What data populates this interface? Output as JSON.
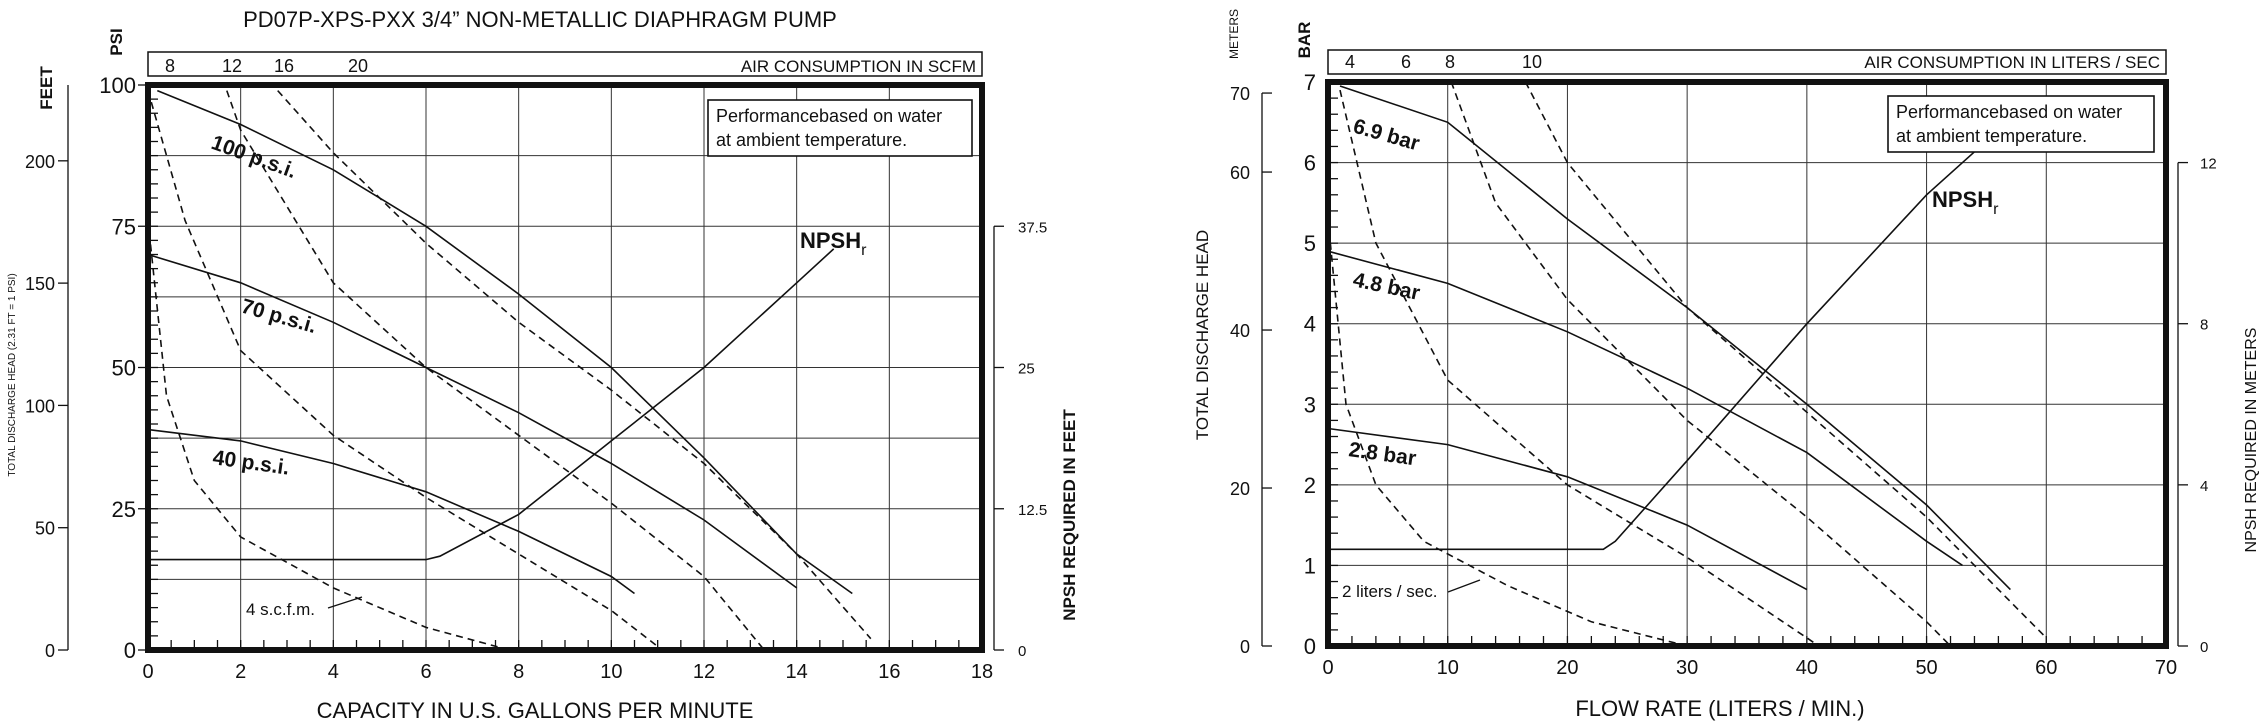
{
  "chart_data": [
    {
      "type": "line",
      "title": "PD07P-XPS-PXX 3/4” NON-METALLIC DIAPHRAGM PUMP",
      "xlabel": "CAPACITY IN U.S. GALLONS PER MINUTE",
      "xlim": [
        0,
        18
      ],
      "x_ticks": [
        "0",
        "2",
        "4",
        "6",
        "8",
        "10",
        "12",
        "14",
        "16",
        "18"
      ],
      "ylabel_left_units": "PSI",
      "ylim_psi": [
        0,
        100
      ],
      "y_ticks_psi": [
        "0",
        "25",
        "50",
        "75",
        "100"
      ],
      "ylabel_far_left": "FEET",
      "ylabel_far_left_desc": "TOTAL DISCHARGE HEAD (2.31 FT = 1 PSI)",
      "y_ticks_feet": [
        "0",
        "50",
        "100",
        "150",
        "200"
      ],
      "ylabel_right": "NPSH REQUIRED IN FEET",
      "y_ticks_right": [
        "0",
        "12.5",
        "25",
        "37.5"
      ],
      "top_axis_label": "AIR CONSUMPTION IN SCFM",
      "top_ticks": [
        "8",
        "12",
        "16",
        "20"
      ],
      "note_line1": "Performancebased on water",
      "note_line2": "at ambient temperature.",
      "npsh_label": "NPSH",
      "npsh_sub": "r",
      "air_label": "4 s.c.f.m.",
      "series": [
        {
          "name": "100 p.s.i.",
          "x": [
            0.2,
            2,
            4,
            6,
            8,
            10,
            12,
            14,
            15.2
          ],
          "y": [
            99,
            93,
            85,
            75,
            63,
            50,
            34,
            17,
            10
          ]
        },
        {
          "name": "70 p.s.i.",
          "x": [
            0,
            2,
            4,
            6,
            8,
            10,
            12,
            14
          ],
          "y": [
            70,
            65,
            58,
            50,
            42,
            33,
            23,
            11
          ]
        },
        {
          "name": "40 p.s.i.",
          "x": [
            0,
            2,
            4,
            6,
            8,
            10,
            10.5
          ],
          "y": [
            39,
            37,
            33,
            28,
            21,
            13,
            10
          ]
        },
        {
          "name": "NPSH",
          "axis": "npsh_feet",
          "x": [
            0,
            6,
            6.3,
            8,
            10,
            12,
            14,
            14.8
          ],
          "y_npsh_ft": [
            8,
            8,
            8.3,
            12,
            18.5,
            25,
            32.5,
            35.5
          ]
        }
      ],
      "air_lines_scfm": [
        {
          "x": [
            0,
            0.4,
            1,
            2,
            4,
            6,
            7.8
          ],
          "y": [
            76,
            45,
            30,
            20,
            11,
            4,
            0
          ]
        },
        {
          "x": [
            0,
            0.8,
            2,
            4,
            6,
            8,
            10,
            11.1
          ],
          "y": [
            99,
            76,
            53,
            38,
            27,
            17,
            7,
            0
          ]
        },
        {
          "x": [
            1.7,
            2,
            4,
            6,
            8,
            10,
            12,
            13.3
          ],
          "y": [
            99,
            92,
            65,
            50,
            38,
            26,
            13,
            0
          ]
        },
        {
          "x": [
            2.8,
            4,
            6,
            8,
            10,
            12,
            14,
            15.6
          ],
          "y": [
            99,
            88,
            72,
            58,
            46,
            33,
            17,
            2
          ]
        }
      ]
    },
    {
      "type": "line",
      "xlabel": "FLOW RATE (LITERS / MIN.)",
      "xlim": [
        0,
        70
      ],
      "x_ticks": [
        "0",
        "10",
        "20",
        "30",
        "40",
        "50",
        "60",
        "70"
      ],
      "ylabel_left_units": "BAR",
      "ylim_bar": [
        0,
        7
      ],
      "y_ticks_bar": [
        "0",
        "1",
        "2",
        "3",
        "4",
        "5",
        "6",
        "7"
      ],
      "ylabel_far_left_units": "METERS",
      "ylabel_far_left": "TOTAL DISCHARGE HEAD",
      "y_ticks_meters": [
        "0",
        "20",
        "40",
        "60",
        "70"
      ],
      "ylabel_right": "NPSH REQUIRED IN METERS",
      "y_ticks_right": [
        "0",
        "4",
        "8",
        "12"
      ],
      "top_axis_label": "AIR CONSUMPTION IN LITERS / SEC",
      "top_ticks": [
        "4",
        "6",
        "8",
        "10"
      ],
      "note_line1": "Performancebased on water",
      "note_line2": "at ambient temperature.",
      "npsh_label": "NPSH",
      "npsh_sub": "r",
      "air_label": "2 liters / sec.",
      "series": [
        {
          "name": "6.9 bar",
          "x": [
            1,
            10,
            20,
            30,
            40,
            50,
            57
          ],
          "y": [
            6.95,
            6.5,
            5.3,
            4.2,
            3.0,
            1.75,
            0.7
          ]
        },
        {
          "name": "4.8 bar",
          "x": [
            0,
            10,
            20,
            30,
            40,
            50,
            53
          ],
          "y": [
            4.9,
            4.5,
            3.9,
            3.2,
            2.4,
            1.3,
            1.0
          ]
        },
        {
          "name": "2.8 bar",
          "x": [
            0,
            10,
            20,
            30,
            40
          ],
          "y": [
            2.7,
            2.5,
            2.1,
            1.5,
            0.7
          ]
        },
        {
          "name": "NPSH",
          "axis": "npsh_meters",
          "x": [
            0,
            23,
            24,
            30,
            40,
            50,
            56
          ],
          "y_npsh_m": [
            2.4,
            2.4,
            2.6,
            4.6,
            8.0,
            11.2,
            12.8
          ]
        }
      ],
      "air_lines": [
        {
          "x": [
            0,
            1.5,
            4,
            8,
            15,
            22,
            30
          ],
          "y": [
            5.3,
            3.0,
            2.0,
            1.3,
            0.75,
            0.3,
            0
          ]
        },
        {
          "x": [
            1,
            4,
            10,
            20,
            30,
            40,
            41
          ],
          "y": [
            6.9,
            5.0,
            3.3,
            2.0,
            1.1,
            0.1,
            0
          ]
        },
        {
          "x": [
            10.3,
            14,
            20,
            30,
            40,
            50,
            52
          ],
          "y": [
            7,
            5.5,
            4.3,
            2.8,
            1.6,
            0.3,
            0
          ]
        },
        {
          "x": [
            16.5,
            20,
            30,
            40,
            50,
            60
          ],
          "y": [
            7,
            6.0,
            4.2,
            2.9,
            1.6,
            0.1
          ]
        }
      ]
    }
  ]
}
